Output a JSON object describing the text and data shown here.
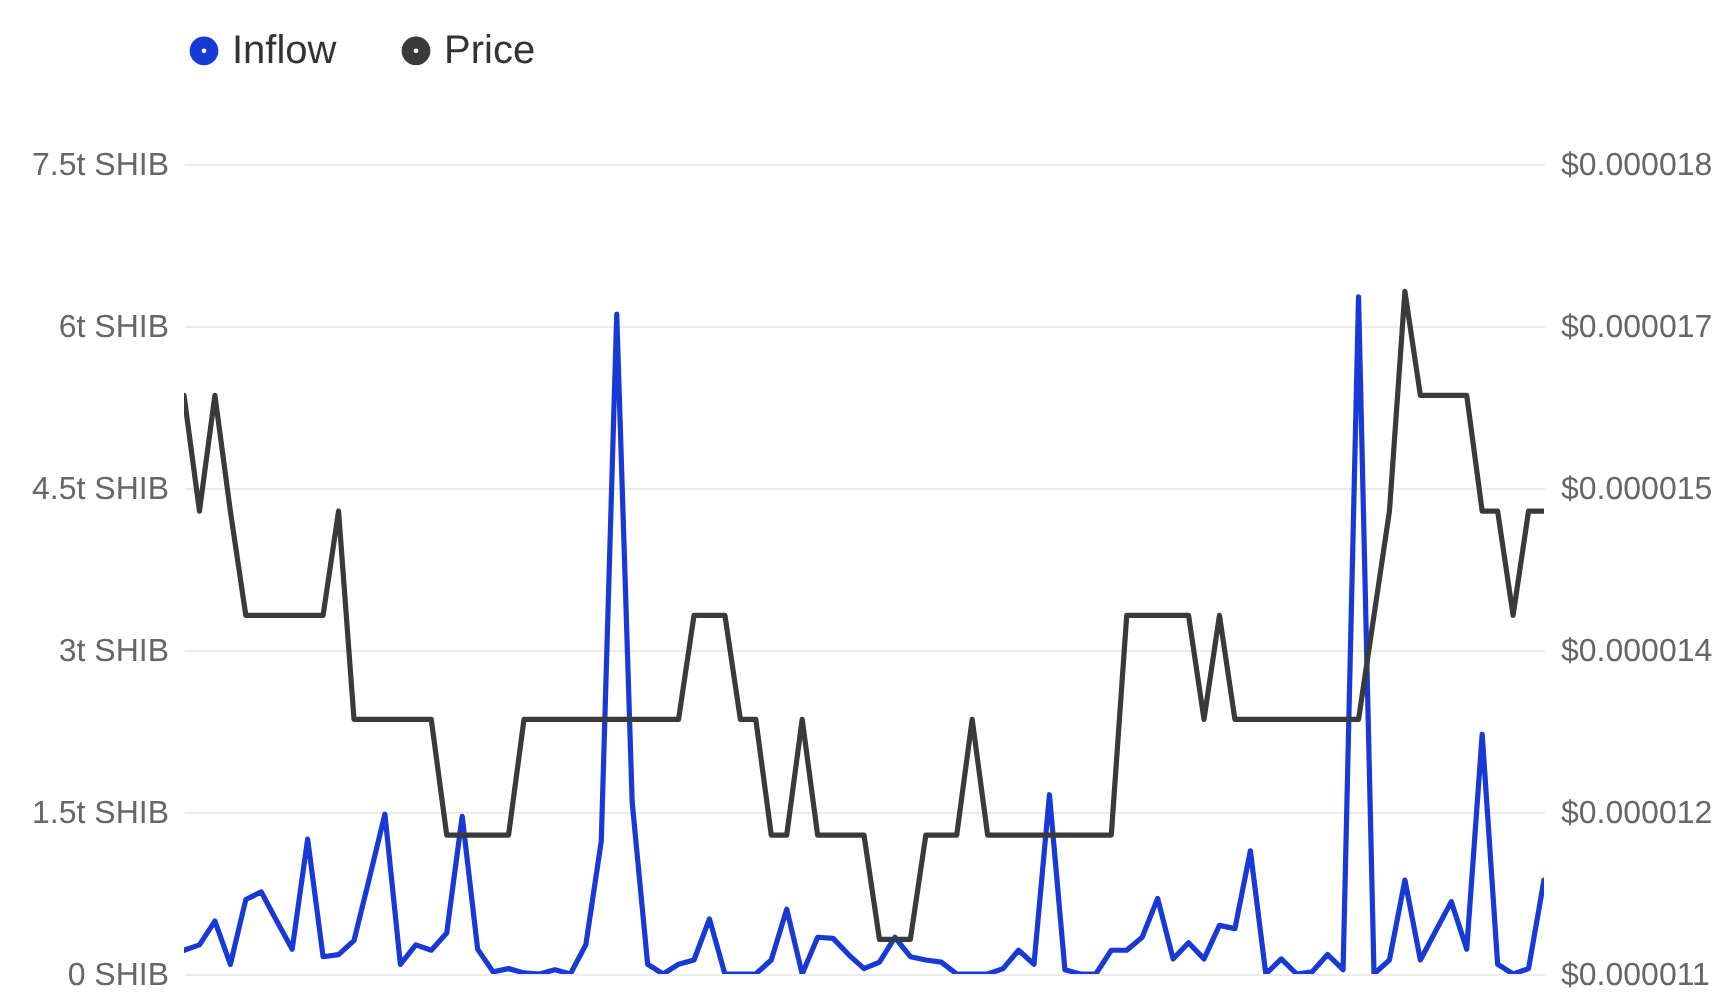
{
  "chart_data": {
    "type": "line",
    "categories": [
      null,
      null,
      null,
      null,
      null,
      null,
      null,
      null,
      null,
      null,
      null,
      null,
      null,
      null,
      null,
      null,
      null,
      null,
      null,
      null,
      null,
      null,
      null,
      null,
      null,
      null,
      null,
      null,
      null,
      null,
      null,
      null,
      null,
      null,
      null,
      null,
      null,
      null,
      null,
      null,
      null,
      null,
      null,
      null,
      null,
      null,
      null,
      null,
      null,
      null,
      null,
      null,
      null,
      null,
      null,
      null,
      null,
      null,
      null,
      null,
      null,
      null,
      null,
      null,
      null,
      null,
      null,
      null,
      null,
      null,
      null,
      null,
      null,
      null,
      null,
      null,
      null,
      null,
      null,
      null,
      null,
      null,
      null,
      null,
      null,
      null,
      null,
      null,
      null
    ],
    "series": [
      {
        "name": "Inflow",
        "color": "#1739d6",
        "values": [
          0.22,
          0.27,
          0.49,
          0.09,
          0.69,
          0.76,
          0.49,
          0.23,
          1.25,
          0.16,
          0.18,
          0.31,
          0.89,
          1.48,
          0.09,
          0.27,
          0.22,
          0.38,
          1.46,
          0.23,
          0.02,
          0.05,
          0.01,
          0,
          0.04,
          0,
          0.27,
          1.23,
          6.11,
          1.59,
          0.09,
          0,
          0.09,
          0.13,
          0.51,
          0,
          0,
          0,
          0.13,
          0.6,
          0,
          0.34,
          0.33,
          0.18,
          0.05,
          0.11,
          0.34,
          0.16,
          0.13,
          0.11,
          0,
          0,
          0,
          0.05,
          0.22,
          0.09,
          1.66,
          0.04,
          0,
          0,
          0.22,
          0.22,
          0.34,
          0.7,
          0.14,
          0.29,
          0.14,
          0.45,
          0.42,
          1.14,
          0,
          0.14,
          0,
          0.02,
          0.18,
          0.04,
          6.27,
          0,
          0.13,
          0.87,
          0.13,
          0.4,
          0.67,
          0.23,
          2.22,
          0.09,
          0,
          0.05,
          0.87
        ]
      },
      {
        "name": "Price",
        "color": "#3a3a3a",
        "axis": "y2",
        "values": [
          1.6e-05,
          1.5e-05,
          1.6e-05,
          1.5e-05,
          1.41e-05,
          1.41e-05,
          1.41e-05,
          1.41e-05,
          1.41e-05,
          1.41e-05,
          1.5e-05,
          1.32e-05,
          1.32e-05,
          1.32e-05,
          1.32e-05,
          1.32e-05,
          1.32e-05,
          1.22e-05,
          1.22e-05,
          1.22e-05,
          1.22e-05,
          1.22e-05,
          1.32e-05,
          1.32e-05,
          1.32e-05,
          1.32e-05,
          1.32e-05,
          1.32e-05,
          1.32e-05,
          1.32e-05,
          1.32e-05,
          1.32e-05,
          1.32e-05,
          1.41e-05,
          1.41e-05,
          1.41e-05,
          1.32e-05,
          1.32e-05,
          1.22e-05,
          1.22e-05,
          1.32e-05,
          1.22e-05,
          1.22e-05,
          1.22e-05,
          1.22e-05,
          1.13e-05,
          1.13e-05,
          1.13e-05,
          1.22e-05,
          1.22e-05,
          1.22e-05,
          1.32e-05,
          1.22e-05,
          1.22e-05,
          1.22e-05,
          1.22e-05,
          1.22e-05,
          1.22e-05,
          1.22e-05,
          1.22e-05,
          1.22e-05,
          1.41e-05,
          1.41e-05,
          1.41e-05,
          1.41e-05,
          1.41e-05,
          1.32e-05,
          1.41e-05,
          1.32e-05,
          1.32e-05,
          1.32e-05,
          1.32e-05,
          1.32e-05,
          1.32e-05,
          1.32e-05,
          1.32e-05,
          1.32e-05,
          1.41e-05,
          1.5e-05,
          1.69e-05,
          1.6e-05,
          1.6e-05,
          1.6e-05,
          1.6e-05,
          1.5e-05,
          1.5e-05,
          1.41e-05,
          1.5e-05,
          1.5e-05
        ]
      }
    ],
    "ylim": [
      0,
      7.5
    ],
    "yticks": [
      {
        "value": 0,
        "label": "0 SHIB"
      },
      {
        "value": 1.5,
        "label": "1.5t SHIB"
      },
      {
        "value": 3,
        "label": "3t SHIB"
      },
      {
        "value": 4.5,
        "label": "4.5t SHIB"
      },
      {
        "value": 6,
        "label": "6t SHIB"
      },
      {
        "value": 7.5,
        "label": "7.5t SHIB"
      }
    ],
    "y2lim": [
      1.1e-05,
      1.8e-05
    ],
    "y2ticks": [
      {
        "value": 1.1e-05,
        "label": "$0.000011"
      },
      {
        "value": 1.24e-05,
        "label": "$0.000012"
      },
      {
        "value": 1.38e-05,
        "label": "$0.000014"
      },
      {
        "value": 1.52e-05,
        "label": "$0.000015"
      },
      {
        "value": 1.66e-05,
        "label": "$0.000017"
      },
      {
        "value": 1.8e-05,
        "label": "$0.000018"
      }
    ],
    "grid": "y",
    "legend": "top left"
  }
}
